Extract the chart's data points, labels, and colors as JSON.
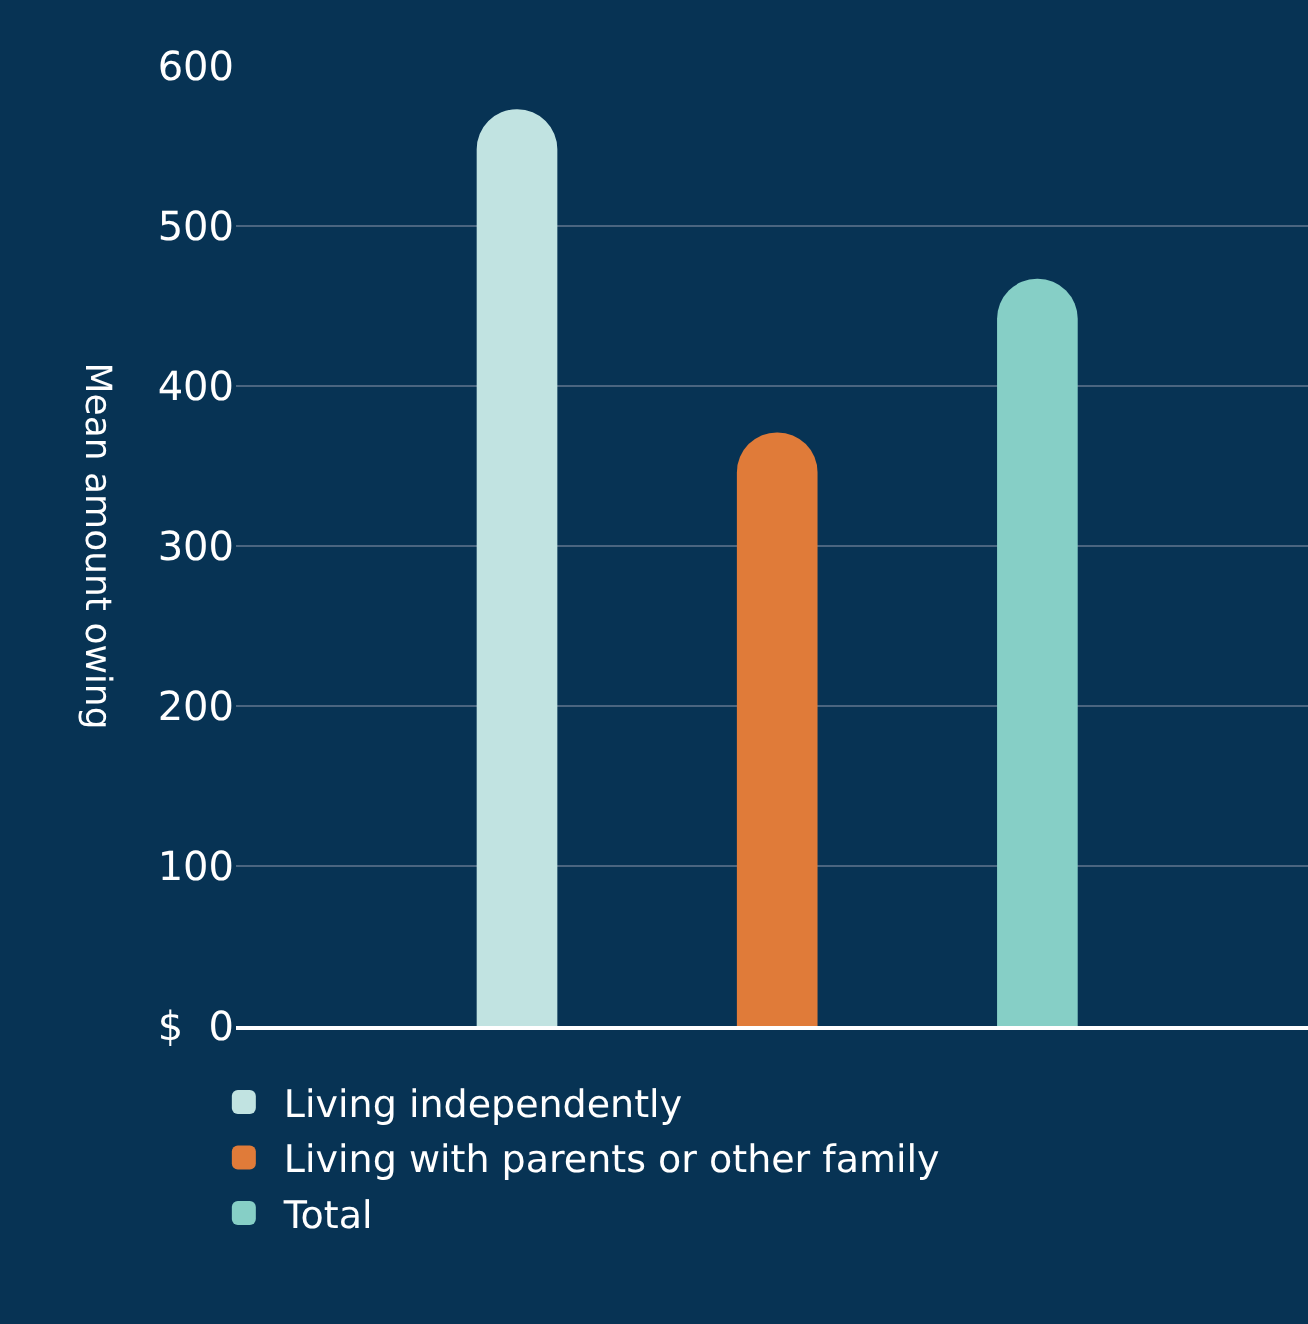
{
  "chart_data": {
    "type": "bar",
    "ylabel": "Mean amount owing",
    "categories": [
      null,
      null,
      null
    ],
    "series": [
      {
        "name": "Living independently",
        "color": "#c1e3e1",
        "values": [
          573,
          null,
          null
        ]
      },
      {
        "name": "Living with parents or other family",
        "color": "#e07b39",
        "values": [
          null,
          371,
          null
        ]
      },
      {
        "name": "Total",
        "color": "#86cfc6",
        "values": [
          null,
          null,
          467
        ]
      }
    ],
    "ylim": [
      0,
      600
    ],
    "yticks": [
      {
        "value": 0,
        "label": "$  0"
      },
      100,
      200,
      300,
      400,
      500,
      600
    ],
    "grid": "y",
    "legend": "bottom",
    "tick_labels": "y"
  }
}
